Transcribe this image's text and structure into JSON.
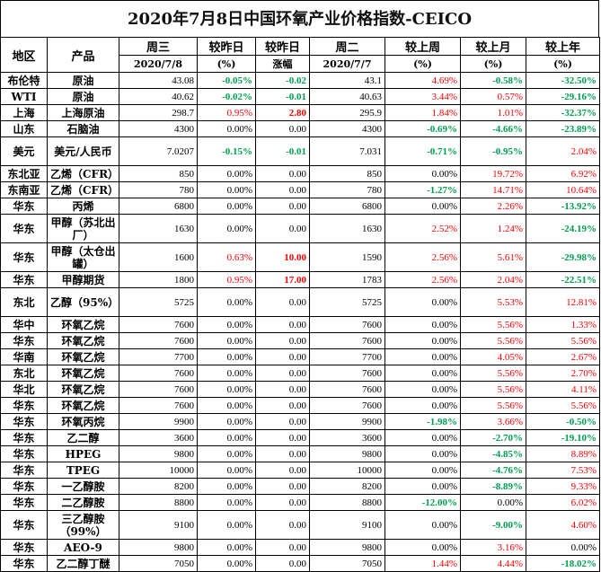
{
  "title": "2020年7月8日中国环氧产业价格指数-CEICO",
  "headers": {
    "row1": [
      "地区",
      "产品",
      "周三",
      "较昨日",
      "较昨日",
      "周二",
      "较上周",
      "较上月",
      "较上年"
    ],
    "row2": [
      "",
      "",
      "2020/7/8",
      "(%)",
      "涨幅",
      "2020/7/7",
      "(%)",
      "(%)",
      "(%)"
    ]
  },
  "colors": {
    "up": "#ff0000",
    "down": "#00a050",
    "flat": "#000000"
  },
  "rows": [
    {
      "region": "布伦特",
      "product": "原油",
      "wed": "43.08",
      "pct": "-0.05%",
      "chg": "-0.02",
      "tue": "43.1",
      "week": "4.69%",
      "month": "-0.58%",
      "year": "-32.50%"
    },
    {
      "region": "WTI",
      "product": "原油",
      "wed": "40.62",
      "pct": "-0.02%",
      "chg": "-0.01",
      "tue": "40.63",
      "week": "3.44%",
      "month": "0.57%",
      "year": "-29.16%"
    },
    {
      "region": "上海",
      "product": "上海原油",
      "wed": "298.7",
      "pct": "0.95%",
      "chg": "2.80",
      "tue": "295.9",
      "week": "1.84%",
      "month": "1.01%",
      "year": "-32.37%"
    },
    {
      "region": "山东",
      "product": "石脑油",
      "wed": "4300",
      "pct": "0.00%",
      "chg": "0.00",
      "tue": "4300",
      "week": "-0.69%",
      "month": "-4.66%",
      "year": "-23.89%"
    },
    {
      "region": "美元",
      "product": "美元/人民币",
      "wed": "7.0207",
      "pct": "-0.15%",
      "chg": "-0.01",
      "tue": "7.031",
      "week": "-0.71%",
      "month": "-0.95%",
      "year": "2.04%",
      "tall": true
    },
    {
      "region": "东北亚",
      "product": "乙烯（CFR）",
      "wed": "850",
      "pct": "0.00%",
      "chg": "0.00",
      "tue": "850",
      "week": "0.00%",
      "month": "19.72%",
      "year": "6.92%"
    },
    {
      "region": "东南亚",
      "product": "乙烯（CFR）",
      "wed": "780",
      "pct": "0.00%",
      "chg": "0.00",
      "tue": "780",
      "week": "-1.27%",
      "month": "14.71%",
      "year": "10.64%"
    },
    {
      "region": "华东",
      "product": "丙烯",
      "wed": "6800",
      "pct": "0.00%",
      "chg": "0.00",
      "tue": "6800",
      "week": "0.00%",
      "month": "2.26%",
      "year": "-13.92%"
    },
    {
      "region": "华东",
      "product": "甲醇（苏北出厂）",
      "wed": "1630",
      "pct": "0.00%",
      "chg": "0.00",
      "tue": "1630",
      "week": "2.52%",
      "month": "1.24%",
      "year": "-24.19%",
      "tall": true
    },
    {
      "region": "华东",
      "product": "甲醇（太仓出罐）",
      "wed": "1600",
      "pct": "0.63%",
      "chg": "10.00",
      "tue": "1590",
      "week": "2.56%",
      "month": "5.61%",
      "year": "-29.98%",
      "tall": true
    },
    {
      "region": "华东",
      "product": "甲醇期货",
      "wed": "1800",
      "pct": "0.95%",
      "chg": "17.00",
      "tue": "1783",
      "week": "2.56%",
      "month": "2.04%",
      "year": "-22.51%"
    },
    {
      "region": "东北",
      "product": "乙醇（95%）",
      "wed": "5725",
      "pct": "0.00%",
      "chg": "0.00",
      "tue": "5725",
      "week": "0.00%",
      "month": "5.53%",
      "year": "12.81%",
      "tall": true
    },
    {
      "region": "华中",
      "product": "环氧乙烷",
      "wed": "7600",
      "pct": "0.00%",
      "chg": "0.00",
      "tue": "7600",
      "week": "0.00%",
      "month": "5.56%",
      "year": "1.33%"
    },
    {
      "region": "华东",
      "product": "环氧乙烷",
      "wed": "7600",
      "pct": "0.00%",
      "chg": "0.00",
      "tue": "7600",
      "week": "0.00%",
      "month": "5.56%",
      "year": "5.56%"
    },
    {
      "region": "华南",
      "product": "环氧乙烷",
      "wed": "7700",
      "pct": "0.00%",
      "chg": "0.00",
      "tue": "7700",
      "week": "0.00%",
      "month": "4.05%",
      "year": "2.67%"
    },
    {
      "region": "东北",
      "product": "环氧乙烷",
      "wed": "7600",
      "pct": "0.00%",
      "chg": "0.00",
      "tue": "7600",
      "week": "0.00%",
      "month": "5.56%",
      "year": "2.70%"
    },
    {
      "region": "华北",
      "product": "环氧乙烷",
      "wed": "7600",
      "pct": "0.00%",
      "chg": "0.00",
      "tue": "7600",
      "week": "0.00%",
      "month": "5.56%",
      "year": "4.11%"
    },
    {
      "region": "华东",
      "product": "环氧乙烷",
      "wed": "7600",
      "pct": "0.00%",
      "chg": "0.00",
      "tue": "7600",
      "week": "0.00%",
      "month": "5.56%",
      "year": "5.56%"
    },
    {
      "region": "华东",
      "product": "环氧丙烷",
      "wed": "9900",
      "pct": "0.00%",
      "chg": "0.00",
      "tue": "9900",
      "week": "-1.98%",
      "month": "3.66%",
      "year": "-0.50%"
    },
    {
      "region": "华东",
      "product": "乙二醇",
      "wed": "3600",
      "pct": "0.00%",
      "chg": "0.00",
      "tue": "3600",
      "week": "0.00%",
      "month": "-2.70%",
      "year": "-19.10%"
    },
    {
      "region": "华东",
      "product": "HPEG",
      "wed": "9800",
      "pct": "0.00%",
      "chg": "0.00",
      "tue": "9800",
      "week": "0.00%",
      "month": "-4.85%",
      "year": "8.89%"
    },
    {
      "region": "华东",
      "product": "TPEG",
      "wed": "10000",
      "pct": "0.00%",
      "chg": "0.00",
      "tue": "10000",
      "week": "0.00%",
      "month": "-4.76%",
      "year": "7.53%"
    },
    {
      "region": "华东",
      "product": "一乙醇胺",
      "wed": "8200",
      "pct": "0.00%",
      "chg": "0.00",
      "tue": "8200",
      "week": "0.00%",
      "month": "-8.89%",
      "year": "9.33%"
    },
    {
      "region": "华东",
      "product": "二乙醇胺",
      "wed": "8800",
      "pct": "0.00%",
      "chg": "0.00",
      "tue": "8800",
      "week": "-12.00%",
      "month": "0.00%",
      "year": "6.02%"
    },
    {
      "region": "华东",
      "product": "三乙醇胺（99%）",
      "wed": "9100",
      "pct": "0.00%",
      "chg": "0.00",
      "tue": "9100",
      "week": "0.00%",
      "month": "-9.00%",
      "year": "4.60%",
      "tall": true
    },
    {
      "region": "华东",
      "product": "AEO-9",
      "wed": "9800",
      "pct": "0.00%",
      "chg": "0.00",
      "tue": "9800",
      "week": "0.00%",
      "month": "3.16%",
      "year": "0.00%"
    },
    {
      "region": "华东",
      "product": "乙二醇丁醚",
      "wed": "7050",
      "pct": "0.00%",
      "chg": "0.00",
      "tue": "7050",
      "week": "1.44%",
      "month": "4.44%",
      "year": "-18.02%"
    }
  ]
}
